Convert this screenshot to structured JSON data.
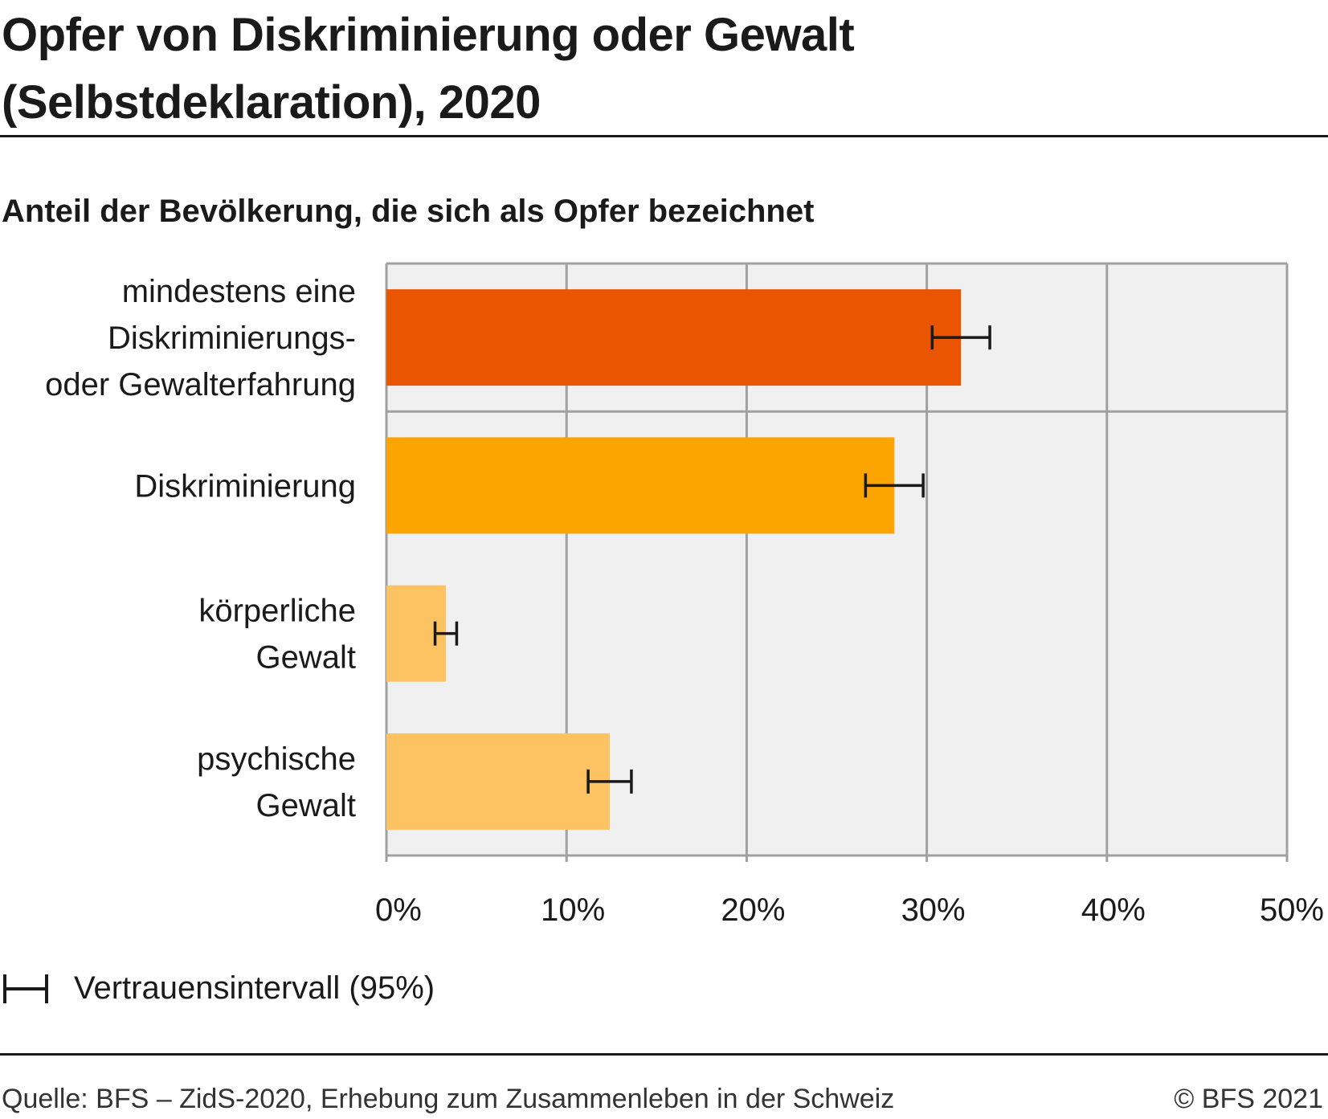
{
  "header": {
    "title_line1": "Opfer von Diskriminierung oder Gewalt",
    "title_line2": "(Selbstdeklaration), 2020"
  },
  "chart_data": {
    "type": "bar",
    "orientation": "horizontal",
    "subtitle": "Anteil der Bevölkerung, die sich als Opfer bezeichnet",
    "categories": [
      [
        "mindestens eine",
        "Diskriminierungs-",
        "oder Gewalterfahrung"
      ],
      [
        "Diskriminierung"
      ],
      [
        "körperliche",
        "Gewalt"
      ],
      [
        "psychische",
        "Gewalt"
      ]
    ],
    "values": [
      31.9,
      28.2,
      3.3,
      12.4
    ],
    "ci_low": [
      30.3,
      26.6,
      2.7,
      11.2
    ],
    "ci_high": [
      33.5,
      29.8,
      3.9,
      13.6
    ],
    "colors": [
      "#ea5504",
      "#fca400",
      "#fdc262",
      "#fdc262"
    ],
    "xlim": [
      0,
      50
    ],
    "ticks": [
      "0%",
      "10%",
      "20%",
      "30%",
      "40%",
      "50%"
    ],
    "tick_values": [
      0,
      10,
      20,
      30,
      40,
      50
    ],
    "grid": true,
    "separator_after_first_bar": true,
    "legend": {
      "label": "Vertrauensintervall (95%)",
      "icon": "error-bar-icon",
      "placement": "bottom-left"
    }
  },
  "footer": {
    "source": "Quelle: BFS – ZidS-2020, Erhebung zum Zusammenleben in der Schweiz",
    "copyright": "© BFS 2021"
  }
}
